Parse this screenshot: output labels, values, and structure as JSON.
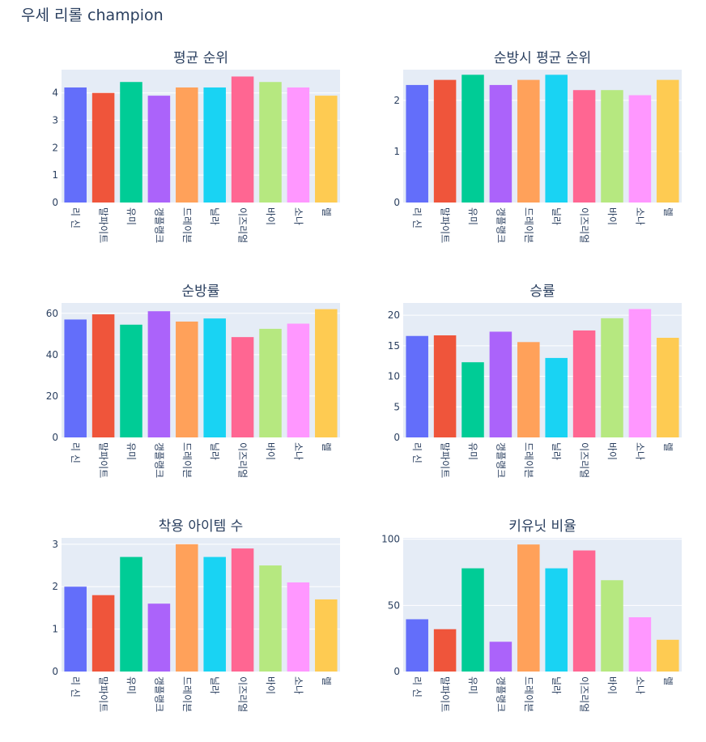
{
  "title": "우세 리롤 champion",
  "chart_data": [
    {
      "type": "bar",
      "title": "평균 순위",
      "categories": [
        "리 신",
        "말파이트",
        "유미",
        "갱플랭크",
        "드레이븐",
        "닐라",
        "이즈리얼",
        "바이",
        "소나",
        "렐"
      ],
      "values": [
        4.2,
        4.0,
        4.4,
        3.9,
        4.2,
        4.2,
        4.6,
        4.4,
        4.2,
        3.9
      ],
      "ylim": [
        0,
        4.85
      ],
      "yticks": [
        0,
        1,
        2,
        3,
        4
      ],
      "grid": true
    },
    {
      "type": "bar",
      "title": "순방시 평균 순위",
      "categories": [
        "리 신",
        "말파이트",
        "유미",
        "갱플랭크",
        "드레이븐",
        "닐라",
        "이즈리얼",
        "바이",
        "소나",
        "렐"
      ],
      "values": [
        2.3,
        2.4,
        2.5,
        2.3,
        2.4,
        2.5,
        2.2,
        2.2,
        2.1,
        2.4
      ],
      "ylim": [
        0,
        2.6
      ],
      "yticks": [
        0,
        1,
        2
      ],
      "grid": true
    },
    {
      "type": "bar",
      "title": "순방률",
      "categories": [
        "리 신",
        "말파이트",
        "유미",
        "갱플랭크",
        "드레이븐",
        "닐라",
        "이즈리얼",
        "바이",
        "소나",
        "렐"
      ],
      "values": [
        57,
        59.5,
        54.5,
        61,
        56,
        57.5,
        48.5,
        52.5,
        55,
        62
      ],
      "ylim": [
        0,
        65
      ],
      "yticks": [
        0,
        20,
        40,
        60
      ],
      "grid": true
    },
    {
      "type": "bar",
      "title": "승률",
      "categories": [
        "리 신",
        "말파이트",
        "유미",
        "갱플랭크",
        "드레이븐",
        "닐라",
        "이즈리얼",
        "바이",
        "소나",
        "렐"
      ],
      "values": [
        16.6,
        16.7,
        12.3,
        17.3,
        15.6,
        13.0,
        17.5,
        19.5,
        21.0,
        16.3
      ],
      "ylim": [
        0,
        22
      ],
      "yticks": [
        0,
        5,
        10,
        15,
        20
      ],
      "grid": true
    },
    {
      "type": "bar",
      "title": "착용 아이템 수",
      "categories": [
        "리 신",
        "말파이트",
        "유미",
        "갱플랭크",
        "드레이븐",
        "닐라",
        "이즈리얼",
        "바이",
        "소나",
        "렐"
      ],
      "values": [
        2.0,
        1.8,
        2.7,
        1.6,
        3.0,
        2.7,
        2.9,
        2.5,
        2.1,
        1.7
      ],
      "ylim": [
        0,
        3.15
      ],
      "yticks": [
        0,
        1,
        2,
        3
      ],
      "grid": true
    },
    {
      "type": "bar",
      "title": "키유닛 비율",
      "categories": [
        "리 신",
        "말파이트",
        "유미",
        "갱플랭크",
        "드레이븐",
        "닐라",
        "이즈리얼",
        "바이",
        "소나",
        "렐"
      ],
      "values": [
        39.5,
        32,
        78,
        22.5,
        96,
        78,
        91.5,
        69,
        41,
        24
      ],
      "ylim": [
        0,
        101
      ],
      "yticks": [
        0,
        50,
        100
      ],
      "grid": true
    }
  ],
  "colors": [
    "#636efa",
    "#ef553b",
    "#00cc96",
    "#ab63fa",
    "#ffa15a",
    "#19d3f3",
    "#ff6692",
    "#b6e880",
    "#ff97ff",
    "#fecb52"
  ],
  "plot_bg": "#e5ecf6",
  "grid_color": "#ffffff"
}
